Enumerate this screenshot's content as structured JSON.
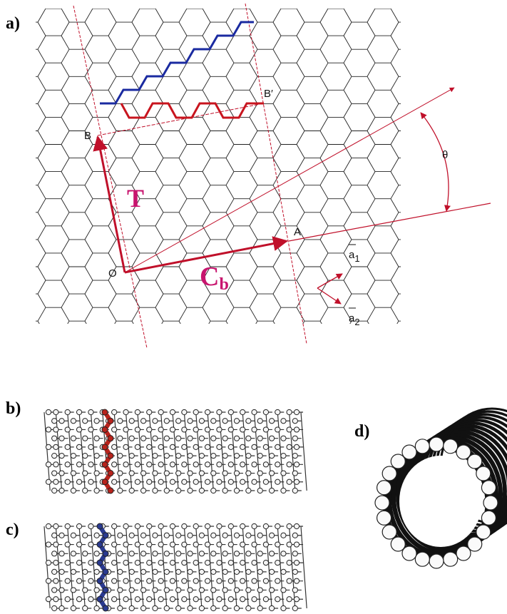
{
  "panels": {
    "a": "a)",
    "b": "b)",
    "c": "c)",
    "d": "d)"
  },
  "points": {
    "B": "B",
    "B_prime": "B′",
    "A": "A",
    "O": "O"
  },
  "vectors": {
    "T": "T",
    "C": "C",
    "C_sub": "b"
  },
  "angle": "θ",
  "basis": [
    {
      "symbol": "a",
      "sub": "1"
    },
    {
      "symbol": "a",
      "sub": "2"
    }
  ]
}
